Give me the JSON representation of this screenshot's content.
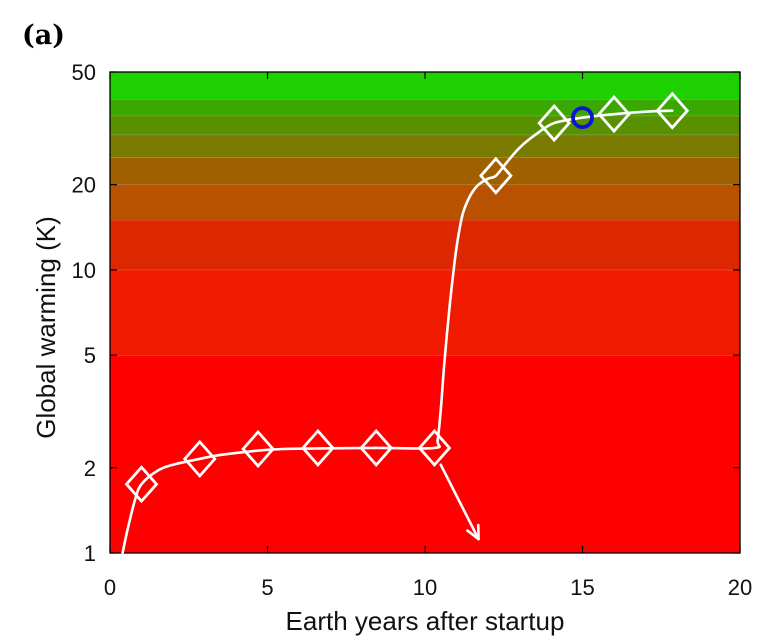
{
  "panel_label": "(a)",
  "chart_data": {
    "type": "line",
    "xlabel": "Earth years after startup",
    "ylabel": "Global warming (K)",
    "xlim": [
      0,
      20
    ],
    "ylim": [
      1,
      50
    ],
    "yscale": "log",
    "xticks": [
      0,
      5,
      10,
      15,
      20
    ],
    "yticks": [
      1,
      2,
      5,
      10,
      20,
      50
    ],
    "xtick_labels": [
      "0",
      "5",
      "10",
      "15",
      "20"
    ],
    "ytick_labels": [
      "1",
      "2",
      "5",
      "10",
      "20",
      "50"
    ],
    "grid": false,
    "legend": "none",
    "series": [
      {
        "marker": "diamond",
        "x": [
          1.0,
          2.85,
          4.7,
          6.6,
          8.45,
          10.3,
          12.25,
          14.1,
          16.0,
          17.85
        ],
        "values": [
          1.75,
          2.15,
          2.33,
          2.35,
          2.35,
          2.35,
          21.5,
          33.0,
          35.5,
          36.5
        ]
      }
    ],
    "highlight_point": {
      "x": 15.0,
      "y": 34.5,
      "marker": "circle",
      "color": "#0a14d2"
    },
    "curve": {
      "x": [
        0.4,
        0.55,
        0.8,
        1.0,
        1.5,
        2.0,
        2.85,
        3.5,
        4.7,
        5.5,
        6.6,
        8.45,
        10.3,
        10.4,
        10.5,
        10.6,
        10.7,
        10.8,
        10.9,
        11.0,
        11.1,
        11.2,
        11.35,
        11.5,
        11.7,
        12.0,
        12.25,
        12.6,
        13.0,
        13.5,
        14.1,
        15.0,
        16.0,
        17.0,
        17.85
      ],
      "values": [
        1.0,
        1.2,
        1.55,
        1.75,
        1.95,
        2.05,
        2.15,
        2.22,
        2.3,
        2.33,
        2.34,
        2.35,
        2.35,
        2.5,
        3.2,
        4.5,
        6.0,
        7.8,
        9.8,
        12.0,
        14.0,
        15.8,
        17.5,
        18.8,
        20.0,
        21.0,
        21.5,
        24.0,
        27.0,
        30.0,
        33.0,
        34.5,
        35.5,
        36.2,
        36.5
      ]
    },
    "arrow": {
      "from": [
        10.5,
        2.05
      ],
      "to": [
        11.7,
        1.12
      ]
    },
    "background_bands": [
      {
        "y0": 1,
        "y1": 5,
        "color": "#ff0000"
      },
      {
        "y0": 5,
        "y1": 10,
        "color": "#f01a00"
      },
      {
        "y0": 10,
        "y1": 15,
        "color": "#dc2800"
      },
      {
        "y0": 15,
        "y1": 20,
        "color": "#b85200"
      },
      {
        "y0": 20,
        "y1": 25,
        "color": "#a06000"
      },
      {
        "y0": 25,
        "y1": 30,
        "color": "#7a7a00"
      },
      {
        "y0": 30,
        "y1": 35,
        "color": "#589000"
      },
      {
        "y0": 35,
        "y1": 40,
        "color": "#3aa800"
      },
      {
        "y0": 40,
        "y1": 50,
        "color": "#1ed000"
      }
    ],
    "colors": {
      "line": "#ffffff",
      "frame": "#000000"
    }
  }
}
